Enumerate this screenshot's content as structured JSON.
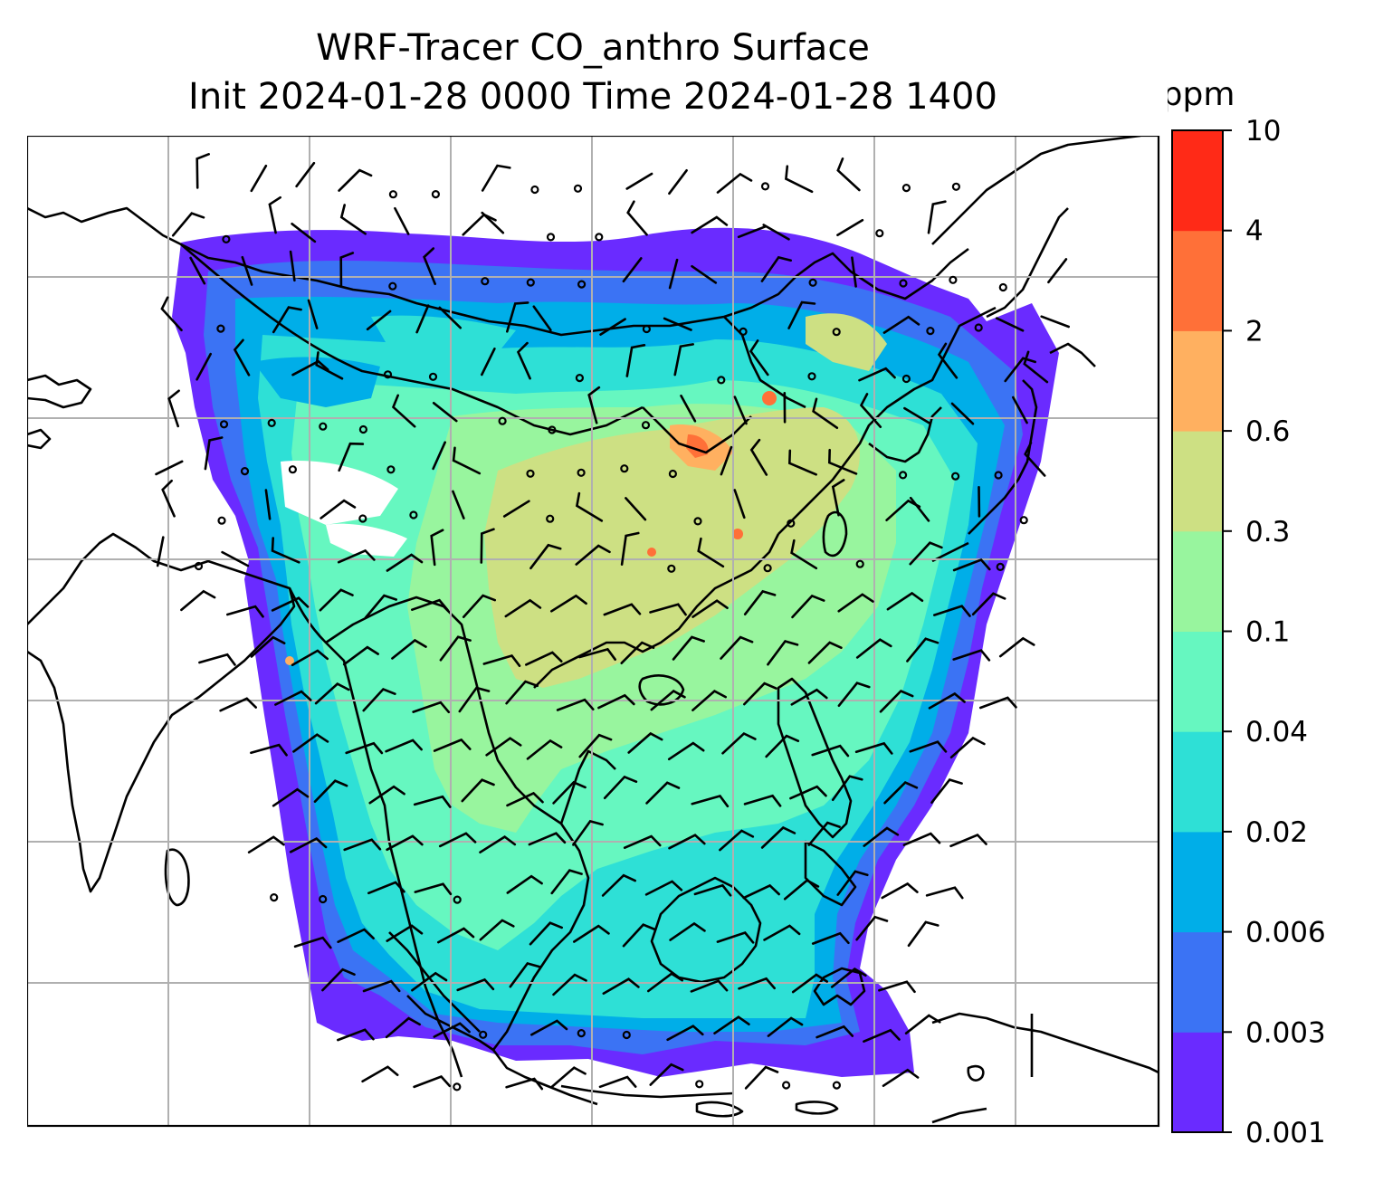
{
  "title": {
    "line1": "WRF-Tracer CO_anthro Surface",
    "line2": "Init 2024-01-28 0000 Time 2024-01-28 1400"
  },
  "colorbar": {
    "unit": "ppm",
    "levels": [
      "0.001",
      "0.003",
      "0.006",
      "0.02",
      "0.04",
      "0.1",
      "0.3",
      "0.6",
      "2",
      "4",
      "10"
    ],
    "colors": [
      "#6a2bff",
      "#3b73f4",
      "#00aee8",
      "#2ee0d6",
      "#66f7c0",
      "#98f59e",
      "#cde083",
      "#ffb060",
      "#ff7038",
      "#ff2a17"
    ]
  },
  "map_colors": {
    "background": "#ffffff",
    "coastline": "#000000",
    "gridline": "#b0b0b0",
    "barb": "#000000"
  },
  "legend_visible": false
}
